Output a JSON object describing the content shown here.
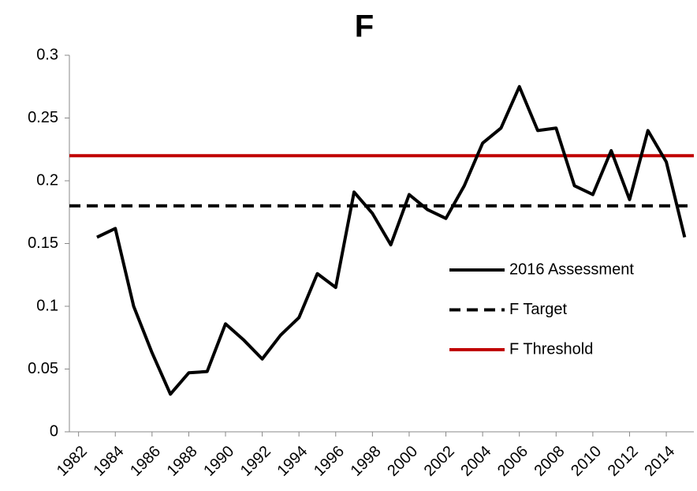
{
  "chart_data": {
    "type": "line",
    "title": "F",
    "x": [
      1983,
      1984,
      1985,
      1986,
      1987,
      1988,
      1989,
      1990,
      1991,
      1992,
      1993,
      1994,
      1995,
      1996,
      1997,
      1998,
      1999,
      2000,
      2001,
      2002,
      2003,
      2004,
      2005,
      2006,
      2007,
      2008,
      2009,
      2010,
      2011,
      2012,
      2013,
      2014,
      2015
    ],
    "series": [
      {
        "name": "2016 Assessment",
        "color": "#000000",
        "values": [
          0.155,
          0.162,
          0.1,
          0.063,
          0.03,
          0.047,
          0.048,
          0.086,
          0.073,
          0.058,
          0.077,
          0.091,
          0.126,
          0.115,
          0.191,
          0.174,
          0.149,
          0.189,
          0.177,
          0.17,
          0.196,
          0.23,
          0.242,
          0.275,
          0.24,
          0.242,
          0.196,
          0.189,
          0.224,
          0.185,
          0.24,
          0.215,
          0.155
        ]
      }
    ],
    "reference_lines": [
      {
        "name": "F Target",
        "color": "#000000",
        "value": 0.18,
        "style": "dashed"
      },
      {
        "name": "F Threshold",
        "color": "#c00000",
        "value": 0.22,
        "style": "solid"
      }
    ],
    "xlim": [
      1981.5,
      2015.5
    ],
    "xticks": [
      1982,
      1984,
      1986,
      1988,
      1990,
      1992,
      1994,
      1996,
      1998,
      2000,
      2002,
      2004,
      2006,
      2008,
      2010,
      2012,
      2014
    ],
    "ylim": [
      0,
      0.3
    ],
    "yticks": [
      0,
      0.05,
      0.1,
      0.15,
      0.2,
      0.25,
      0.3
    ],
    "grid": false,
    "legend": "right"
  }
}
